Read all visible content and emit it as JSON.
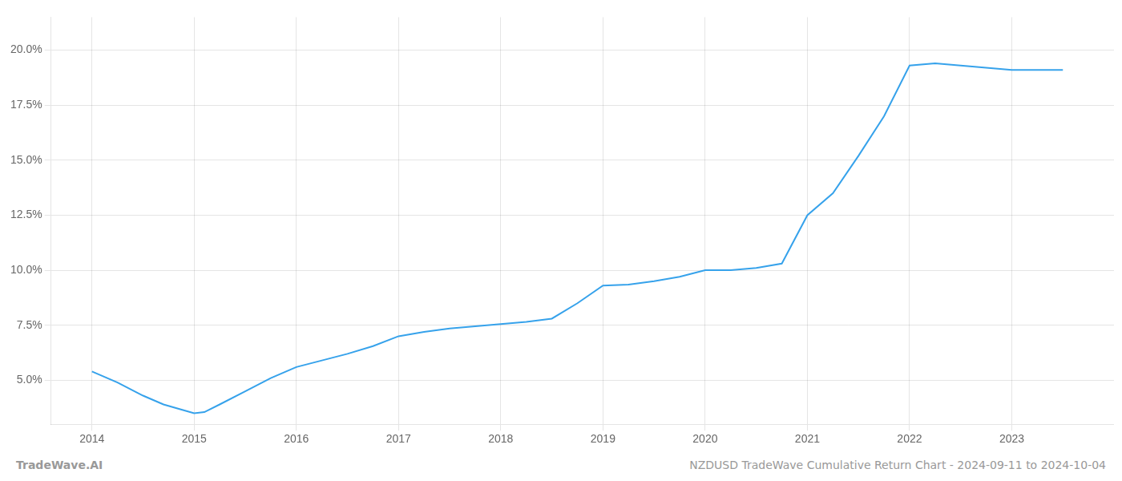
{
  "chart_data": {
    "type": "line",
    "title": "NZDUSD TradeWave Cumulative Return Chart - 2024-09-11 to 2024-10-04",
    "annotations": [
      "TradeWave.AI"
    ],
    "x": [
      2014.0,
      2014.25,
      2014.5,
      2014.7,
      2014.85,
      2015.0,
      2015.1,
      2015.25,
      2015.5,
      2015.75,
      2016.0,
      2016.25,
      2016.5,
      2016.75,
      2017.0,
      2017.25,
      2017.5,
      2017.75,
      2018.0,
      2018.25,
      2018.5,
      2018.75,
      2019.0,
      2019.25,
      2019.5,
      2019.75,
      2020.0,
      2020.25,
      2020.5,
      2020.75,
      2021.0,
      2021.25,
      2021.5,
      2021.75,
      2022.0,
      2022.25,
      2022.5,
      2022.75,
      2023.0,
      2023.5
    ],
    "values": [
      5.4,
      4.9,
      4.3,
      3.9,
      3.7,
      3.5,
      3.55,
      3.9,
      4.5,
      5.1,
      5.6,
      5.9,
      6.2,
      6.55,
      7.0,
      7.2,
      7.35,
      7.45,
      7.55,
      7.65,
      7.8,
      8.5,
      9.3,
      9.35,
      9.5,
      9.7,
      10.0,
      10.0,
      10.1,
      10.3,
      12.5,
      13.5,
      15.2,
      17.0,
      19.3,
      19.4,
      19.3,
      19.2,
      19.1,
      19.1
    ],
    "xlim": [
      2013.6,
      2024.0
    ],
    "ylim": [
      3.0,
      21.5
    ],
    "xticks": [
      2014,
      2015,
      2016,
      2017,
      2018,
      2019,
      2020,
      2021,
      2022,
      2023
    ],
    "yticks": [
      {
        "value": 5.0,
        "label": "5.0%"
      },
      {
        "value": 7.5,
        "label": "7.5%"
      },
      {
        "value": 10.0,
        "label": "10.0%"
      },
      {
        "value": 12.5,
        "label": "12.5%"
      },
      {
        "value": 15.0,
        "label": "15.0%"
      },
      {
        "value": 17.5,
        "label": "17.5%"
      },
      {
        "value": 20.0,
        "label": "20.0%"
      }
    ],
    "grid": true
  }
}
